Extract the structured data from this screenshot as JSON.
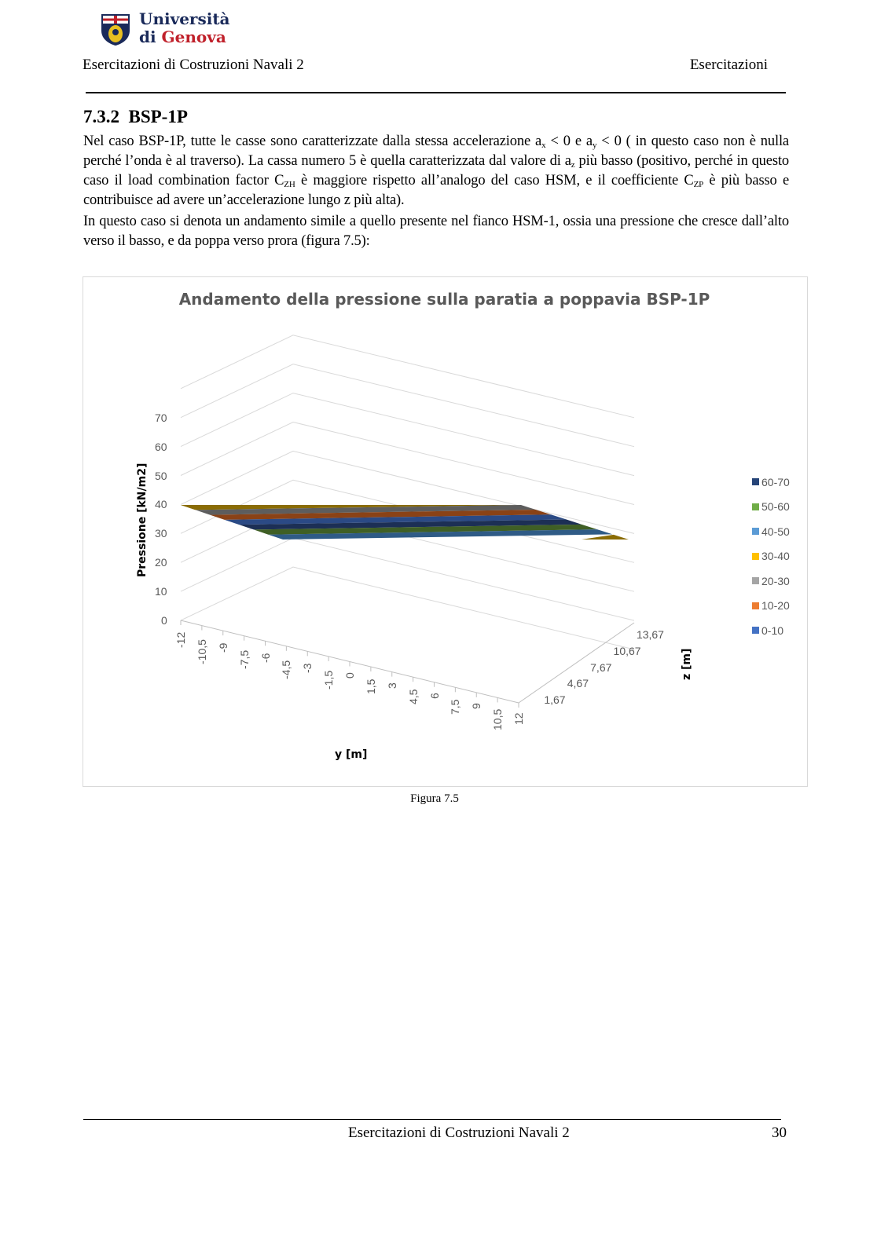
{
  "header": {
    "logo_line1": "Università",
    "logo_line2a": "di ",
    "logo_line2b": "Genova",
    "left": "Esercitazioni di Costruzioni Navali 2",
    "right": "Esercitazioni"
  },
  "section": {
    "number": "7.3.2",
    "title": "BSP-1P"
  },
  "paragraph1": {
    "s1": "Nel caso BSP-1P, tutte le casse sono caratterizzate dalla stessa accelerazione a",
    "sub1": "x",
    "s2": " < 0 e a",
    "sub2": "y",
    "s3": " < 0 ( in questo caso non è nulla perché l’onda è al traverso). La cassa numero 5 è quella caratterizzata dal valore di a",
    "sub3": "z",
    "s4": " più basso (positivo, perché in questo caso il load combination factor C",
    "sub4": "ZH",
    "s5": " è maggiore rispetto all’analogo del caso HSM, e il coefficiente C",
    "sub5": "ZP",
    "s6": " è più basso e contribuisce ad avere un’accelerazione lungo z più alta)."
  },
  "paragraph2": "In questo caso si denota un andamento simile a quello presente nel fianco HSM-1, ossia una pressione che cresce dall’alto verso il basso, e da poppa verso prora (figura 7.5):",
  "figure_caption": "Figura 7.5",
  "footer": {
    "text": "Esercitazioni di Costruzioni Navali 2",
    "page": "30"
  },
  "chart_data": {
    "type": "surface",
    "title": "Andamento della pressione sulla paratia a poppavia BSP-1P",
    "xlabel": "y [m]",
    "ylabel": "Pressione [kN/m2]",
    "zlabel": "z [m]",
    "pressure_ticks": [
      "0",
      "10",
      "20",
      "30",
      "40",
      "50",
      "60",
      "70"
    ],
    "pressure_range": [
      0,
      80
    ],
    "y_ticks": [
      "-12",
      "-10,5",
      "-9",
      "-7,5",
      "-6",
      "-4,5",
      "-3",
      "-1,5",
      "0",
      "1,5",
      "3",
      "4,5",
      "6",
      "7,5",
      "9",
      "10,5",
      "12"
    ],
    "z_ticks": [
      "1,67",
      "4,67",
      "7,67",
      "10,67",
      "13,67"
    ],
    "legend_position": "right",
    "legend": [
      {
        "label": "60-70",
        "color": "#264478",
        "shade": "#1c2f55"
      },
      {
        "label": "50-60",
        "color": "#70ad47",
        "shade": "#3f5f25"
      },
      {
        "label": "40-50",
        "color": "#5b9bd5",
        "shade": "#2f5b86"
      },
      {
        "label": "30-40",
        "color": "#ffc000",
        "shade": "#8a6c05"
      },
      {
        "label": "20-30",
        "color": "#a5a5a5",
        "shade": "#5d5d5d"
      },
      {
        "label": "10-20",
        "color": "#ed7d31",
        "shade": "#8a4216"
      },
      {
        "label": "0-10",
        "color": "#4472c4",
        "shade": "#2b4a85"
      }
    ]
  }
}
